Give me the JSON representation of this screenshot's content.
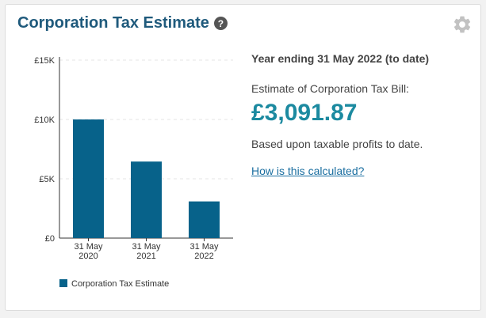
{
  "widget": {
    "title": "Corporation Tax Estimate",
    "help_icon": "question-circle-icon",
    "help_glyph": "?",
    "settings_icon": "gear-icon"
  },
  "summary": {
    "period": "Year ending 31 May 2022 (to date)",
    "estimate_label": "Estimate of Corporation Tax Bill:",
    "estimate_value": "£3,091.87",
    "basis_note": "Based upon taxable profits to date.",
    "calc_link": "How is this calculated?"
  },
  "colors": {
    "title": "#1f5a7c",
    "value": "#1c8aa0",
    "bar": "#07628a",
    "link": "#1a6ea0"
  },
  "chart_data": {
    "type": "bar",
    "categories": [
      [
        "31 May",
        "2020"
      ],
      [
        "31 May",
        "2021"
      ],
      [
        "31 May",
        "2022"
      ]
    ],
    "series": [
      {
        "name": "Corporation Tax Estimate",
        "values": [
          10000,
          6450,
          3091.87
        ]
      }
    ],
    "ylim": [
      0,
      15000
    ],
    "yticks": [
      0,
      5000,
      10000,
      15000
    ],
    "ytick_labels": [
      "£0",
      "£5K",
      "£10K",
      "£15K"
    ],
    "grid": true,
    "legend": "bottom-left"
  }
}
